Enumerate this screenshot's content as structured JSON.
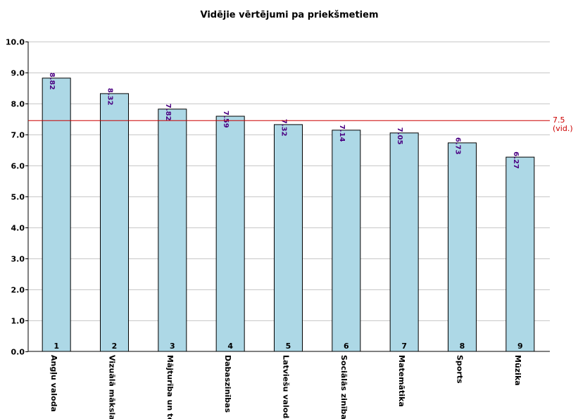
{
  "chart_data": {
    "type": "bar",
    "title": "Vidējie vērtējumi pa priekšmetiem",
    "categories": [
      "Angļu valoda",
      "Vizuālā māksla",
      "Mājturība un tehn",
      "Dabaszinības",
      "Latviešu valoda",
      "Sociālās zinības",
      "Matemātika",
      "Sports",
      "Mūzika"
    ],
    "indices": [
      "1",
      "2",
      "3",
      "4",
      "5",
      "6",
      "7",
      "8",
      "9"
    ],
    "values": [
      8.82,
      8.32,
      7.82,
      7.59,
      7.32,
      7.14,
      7.05,
      6.73,
      6.27
    ],
    "value_labels": [
      "8.82",
      "8.32",
      "7.82",
      "7.59",
      "7.32",
      "7.14",
      "7.05",
      "6.73",
      "6.27"
    ],
    "y_ticks": [
      0,
      1,
      2,
      3,
      4,
      5,
      6,
      7,
      8,
      9,
      10
    ],
    "y_tick_labels": [
      "0.0",
      "1.0",
      "2.0",
      "3.0",
      "4.0",
      "5.0",
      "6.0",
      "7.0",
      "8.0",
      "9.0",
      "10.0"
    ],
    "ylim": [
      0,
      10
    ],
    "grid": true,
    "average": {
      "value": 7.45,
      "label_value": "7.5",
      "label_suffix": "(vid.)",
      "color": "#cc0000"
    },
    "bar_color": "#add8e6",
    "bar_edge_color": "#000000",
    "value_label_color": "#4b0082",
    "xlabel": "",
    "ylabel": ""
  }
}
